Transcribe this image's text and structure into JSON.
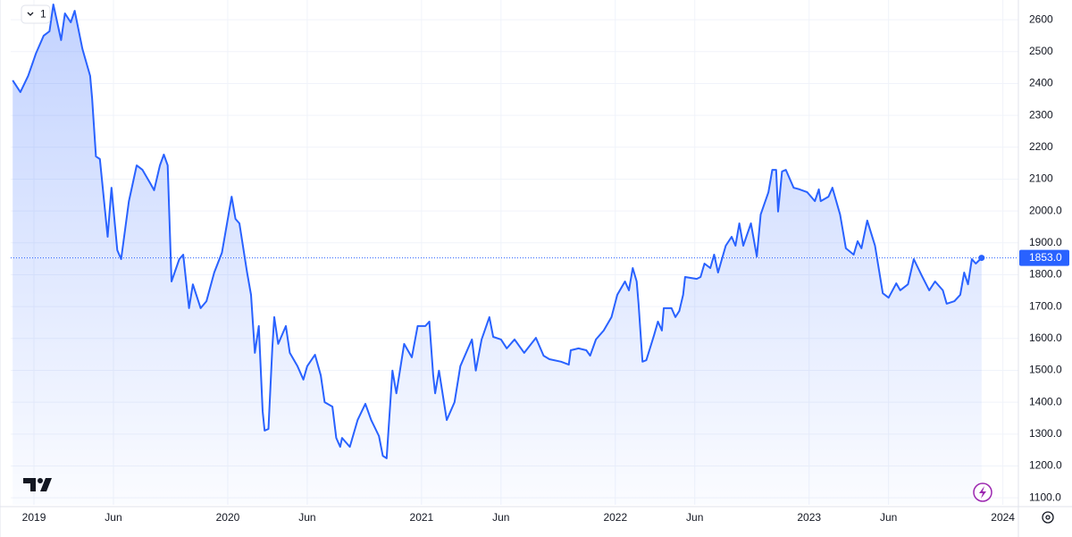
{
  "toolbar": {
    "label": "1"
  },
  "chart_data": {
    "type": "line",
    "x": [
      2018.89,
      2018.93,
      2018.97,
      2019.01,
      2019.05,
      2019.08,
      2019.1,
      2019.14,
      2019.16,
      2019.19,
      2019.21,
      2019.25,
      2019.29,
      2019.3,
      2019.32,
      2019.34,
      2019.38,
      2019.4,
      2019.43,
      2019.45,
      2019.49,
      2019.53,
      2019.56,
      2019.6,
      2019.62,
      2019.65,
      2019.67,
      2019.69,
      2019.71,
      2019.75,
      2019.77,
      2019.8,
      2019.82,
      2019.86,
      2019.89,
      2019.93,
      2019.97,
      2020.0,
      2020.02,
      2020.04,
      2020.06,
      2020.1,
      2020.12,
      2020.14,
      2020.16,
      2020.18,
      2020.19,
      2020.21,
      2020.23,
      2020.24,
      2020.26,
      2020.3,
      2020.32,
      2020.36,
      2020.39,
      2020.41,
      2020.45,
      2020.48,
      2020.5,
      2020.54,
      2020.56,
      2020.58,
      2020.59,
      2020.63,
      2020.67,
      2020.71,
      2020.74,
      2020.78,
      2020.8,
      2020.82,
      2020.85,
      2020.87,
      2020.91,
      2020.95,
      2020.98,
      2021.02,
      2021.04,
      2021.06,
      2021.07,
      2021.09,
      2021.13,
      2021.17,
      2021.2,
      2021.24,
      2021.26,
      2021.28,
      2021.31,
      2021.35,
      2021.37,
      2021.41,
      2021.44,
      2021.48,
      2021.53,
      2021.59,
      2021.63,
      2021.66,
      2021.72,
      2021.76,
      2021.77,
      2021.81,
      2021.85,
      2021.87,
      2021.9,
      2021.94,
      2021.98,
      2022.01,
      2022.05,
      2022.07,
      2022.09,
      2022.11,
      2022.12,
      2022.14,
      2022.16,
      2022.2,
      2022.22,
      2022.24,
      2022.25,
      2022.29,
      2022.31,
      2022.33,
      2022.35,
      2022.36,
      2022.42,
      2022.44,
      2022.46,
      2022.49,
      2022.51,
      2022.53,
      2022.57,
      2022.6,
      2022.62,
      2022.64,
      2022.66,
      2022.7,
      2022.73,
      2022.75,
      2022.79,
      2022.81,
      2022.83,
      2022.84,
      2022.86,
      2022.88,
      2022.92,
      2022.95,
      2022.99,
      2023.03,
      2023.05,
      2023.06,
      2023.1,
      2023.12,
      2023.16,
      2023.19,
      2023.23,
      2023.25,
      2023.27,
      2023.3,
      2023.34,
      2023.38,
      2023.41,
      2023.45,
      2023.47,
      2023.51,
      2023.54,
      2023.58,
      2023.62,
      2023.65,
      2023.69,
      2023.71,
      2023.75,
      2023.78,
      2023.8,
      2023.82,
      2023.84,
      2023.86,
      2023.89
    ],
    "series": [
      {
        "color": "#2962ff",
        "values": [
          2410,
          2373,
          2424,
          2494,
          2550,
          2564,
          2648,
          2536,
          2620,
          2592,
          2628,
          2508,
          2424,
          2354,
          2171,
          2163,
          1919,
          2073,
          1877,
          1849,
          2031,
          2143,
          2129,
          2087,
          2065,
          2143,
          2177,
          2143,
          1779,
          1849,
          1863,
          1695,
          1770,
          1695,
          1717,
          1807,
          1869,
          1975,
          2045,
          1975,
          1961,
          1807,
          1737,
          1555,
          1639,
          1372,
          1311,
          1316,
          1569,
          1667,
          1583,
          1639,
          1555,
          1513,
          1471,
          1513,
          1549,
          1484,
          1400,
          1386,
          1288,
          1260,
          1288,
          1260,
          1344,
          1395,
          1344,
          1294,
          1232,
          1224,
          1499,
          1428,
          1583,
          1541,
          1639,
          1639,
          1653,
          1485,
          1428,
          1499,
          1344,
          1400,
          1513,
          1569,
          1597,
          1499,
          1597,
          1667,
          1605,
          1597,
          1569,
          1597,
          1555,
          1602,
          1546,
          1535,
          1527,
          1518,
          1563,
          1569,
          1563,
          1546,
          1597,
          1625,
          1667,
          1737,
          1779,
          1751,
          1821,
          1779,
          1709,
          1527,
          1532,
          1611,
          1653,
          1625,
          1695,
          1695,
          1667,
          1686,
          1737,
          1793,
          1787,
          1793,
          1835,
          1821,
          1863,
          1807,
          1891,
          1919,
          1891,
          1961,
          1891,
          1961,
          1857,
          1989,
          2059,
          2129,
          2129,
          1998,
          2124,
          2129,
          2073,
          2068,
          2059,
          2031,
          2068,
          2031,
          2045,
          2073,
          1989,
          1883,
          1863,
          1905,
          1883,
          1970,
          1891,
          1742,
          1728,
          1773,
          1751,
          1770,
          1849,
          1799,
          1751,
          1779,
          1751,
          1709,
          1717,
          1737,
          1807,
          1770,
          1849,
          1835,
          1853
        ]
      }
    ],
    "last_value_label": "1853.0",
    "xlim": [
      2018.88,
      2024.08
    ],
    "xticks": [
      2019,
      {
        "value": 2019.41,
        "label": "Jun"
      },
      2020,
      {
        "value": 2020.41,
        "label": "Jun"
      },
      2021,
      {
        "value": 2021.41,
        "label": "Jun"
      },
      2022,
      {
        "value": 2022.41,
        "label": "Jun"
      },
      2023,
      {
        "value": 2023.41,
        "label": "Jun"
      },
      2024
    ],
    "ylim": [
      1078,
      2662
    ],
    "yticks": [
      {
        "value": 1100,
        "label": "1100.0"
      },
      {
        "value": 1200,
        "label": "1200.0"
      },
      {
        "value": 1300,
        "label": "1300.0"
      },
      {
        "value": 1400,
        "label": "1400.0"
      },
      {
        "value": 1500,
        "label": "1500.0"
      },
      {
        "value": 1600,
        "label": "1600.0"
      },
      {
        "value": 1700,
        "label": "1700.0"
      },
      {
        "value": 1800,
        "label": "1800.0"
      },
      {
        "value": 1900,
        "label": "1900.0"
      },
      {
        "value": 2000,
        "label": "2000.0"
      },
      2100,
      2200,
      2300,
      2400,
      2500,
      2600
    ],
    "grid": true
  }
}
